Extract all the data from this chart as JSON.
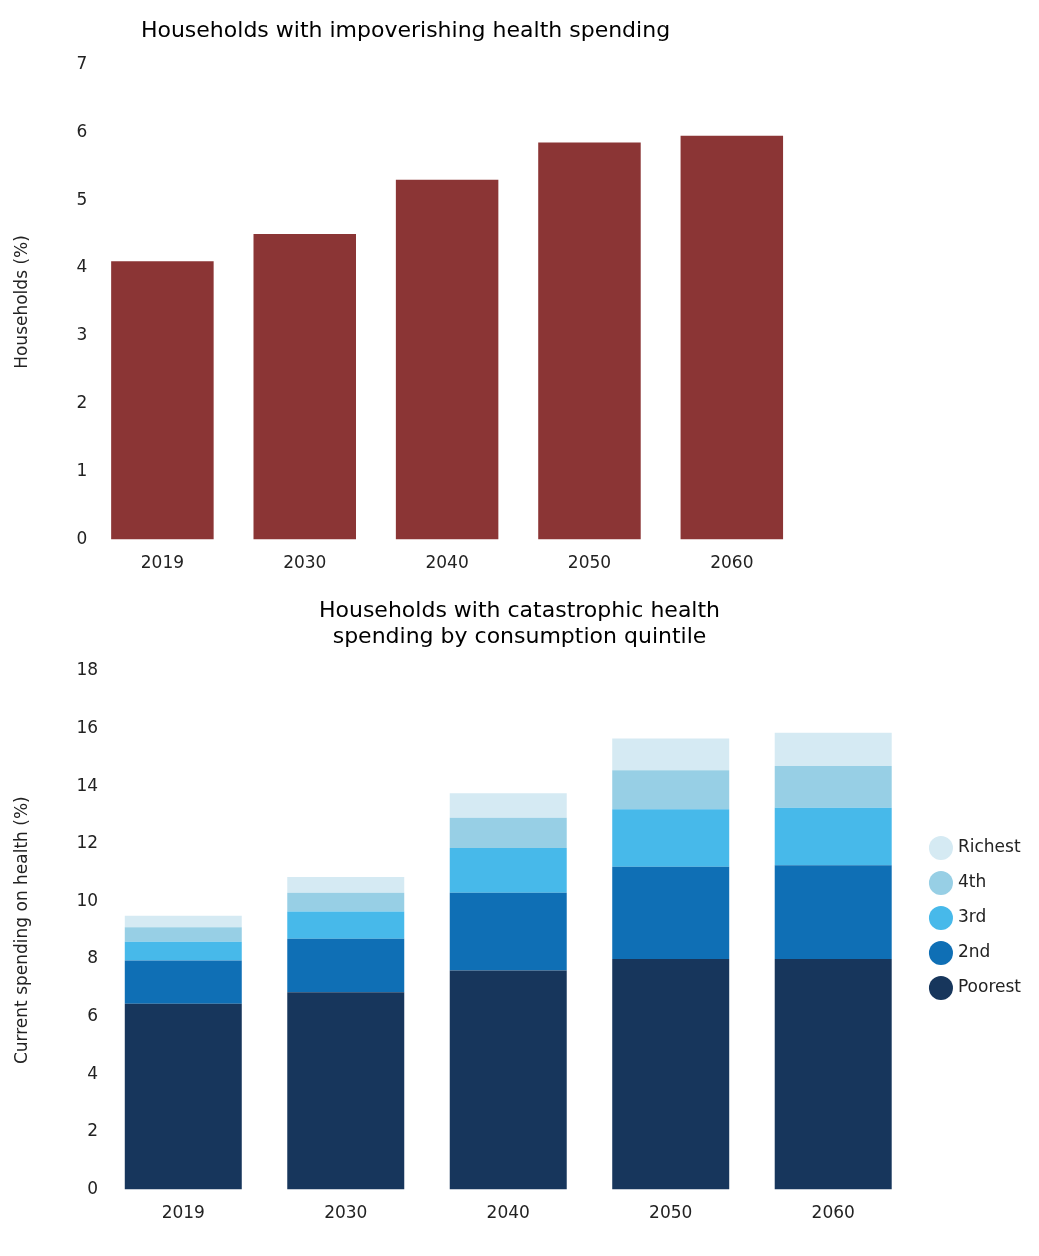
{
  "chart_data": [
    {
      "type": "bar",
      "title": "Households with impoverishing health spending",
      "ylabel": "Households (%)",
      "categories": [
        "2019",
        "2030",
        "2040",
        "2050",
        "2060"
      ],
      "values": [
        4.1,
        4.5,
        5.3,
        5.85,
        5.95
      ],
      "color": "#8b3535",
      "ylim": [
        0,
        7
      ],
      "yticks": [
        0,
        1,
        2,
        3,
        4,
        5,
        6,
        7
      ],
      "grid": false,
      "legend": false
    },
    {
      "type": "bar",
      "title": "Households with catastrophic health spending by consumption quintile",
      "ylabel": "Current spending on health (%)",
      "categories": [
        "2019",
        "2030",
        "2040",
        "2050",
        "2060"
      ],
      "stacked": true,
      "series": [
        {
          "name": "Poorest",
          "color": "#17365c",
          "values": [
            6.45,
            6.85,
            7.6,
            8.0,
            8.0
          ]
        },
        {
          "name": "2nd",
          "color": "#0f6fb5",
          "values": [
            1.5,
            1.85,
            2.7,
            3.2,
            3.25
          ]
        },
        {
          "name": "3rd",
          "color": "#47b9ea",
          "values": [
            0.65,
            0.95,
            1.55,
            2.0,
            2.0
          ]
        },
        {
          "name": "4th",
          "color": "#97cfe5",
          "values": [
            0.5,
            0.65,
            1.05,
            1.35,
            1.45
          ]
        },
        {
          "name": "Richest",
          "color": "#d5eaf3",
          "values": [
            0.4,
            0.55,
            0.85,
            1.1,
            1.15
          ]
        }
      ],
      "ylim": [
        0,
        18
      ],
      "yticks": [
        0,
        2,
        4,
        6,
        8,
        10,
        12,
        14,
        16,
        18
      ],
      "grid": false,
      "legend": "right"
    }
  ]
}
